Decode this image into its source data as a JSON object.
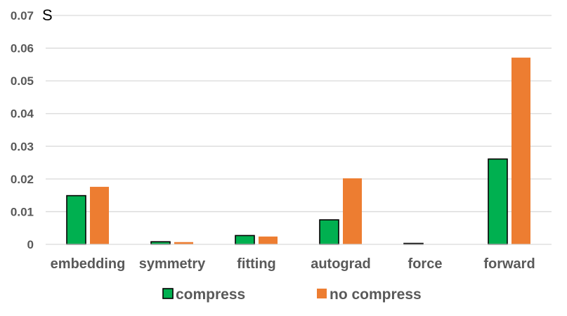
{
  "chart_data": {
    "type": "bar",
    "unit_label": "S",
    "categories": [
      "embedding",
      "symmetry",
      "fitting",
      "autograd",
      "force",
      "forward"
    ],
    "series": [
      {
        "name": "compress",
        "color": "#00b050",
        "values": [
          0.0149,
          0.0008,
          0.0027,
          0.0075,
          0.0003,
          0.0261
        ]
      },
      {
        "name": "no compress",
        "color": "#ed7d31",
        "values": [
          0.0176,
          0.0007,
          0.0024,
          0.0202,
          0.0,
          0.0571
        ]
      }
    ],
    "y_ticks": [
      "0",
      "0.01",
      "0.02",
      "0.03",
      "0.04",
      "0.05",
      "0.06",
      "0.07"
    ],
    "ylim": [
      0,
      0.07
    ],
    "grid": true,
    "legend_position": "bottom"
  }
}
